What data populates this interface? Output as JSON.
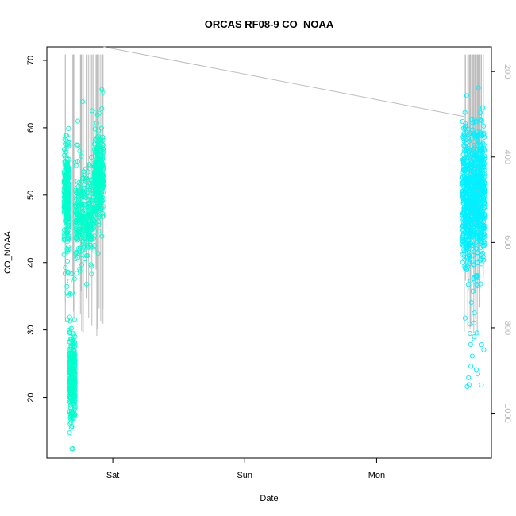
{
  "chart_data": {
    "type": "scatter",
    "title": "ORCAS RF08-9 CO_NOAA",
    "xlabel": "Date",
    "ylabel": "CO_NOAA",
    "x_ticks": [
      {
        "label": "Sat",
        "day": 1.0
      },
      {
        "label": "Sun",
        "day": 2.0
      },
      {
        "label": "Mon",
        "day": 3.0
      }
    ],
    "xlim_days": [
      0.5,
      3.87
    ],
    "ylim": [
      11,
      72
    ],
    "y_ticks": [
      20,
      30,
      40,
      50,
      60,
      70
    ],
    "y2_ticks": [
      200,
      400,
      600,
      800,
      1000
    ],
    "y2lim": [
      1105,
      142
    ],
    "grid": false,
    "series": [
      {
        "marker": "open-circle",
        "color_low": "#00ffcc",
        "color_high": "#00f0ff",
        "segments": [
          {
            "start_day": 0.63,
            "end_day": 0.67,
            "min": 31,
            "max": 63,
            "center": 50
          },
          {
            "start_day": 0.67,
            "end_day": 0.715,
            "min": 12,
            "max": 40,
            "center": 23
          },
          {
            "start_day": 0.715,
            "end_day": 0.86,
            "min": 36,
            "max": 66,
            "center": 47
          },
          {
            "start_day": 0.86,
            "end_day": 0.93,
            "min": 41,
            "max": 66,
            "center": 53
          },
          {
            "start_day": 3.65,
            "end_day": 3.82,
            "min": 21,
            "max": 66,
            "center": 50
          }
        ]
      }
    ],
    "pressure_trace": {
      "color": "#bdbdbd",
      "note_axis": "right",
      "segments": [
        {
          "start_day": 0.64,
          "end_day": 0.93,
          "min_pressure": 160,
          "max_pressure": 830
        },
        {
          "start_day": 3.66,
          "end_day": 3.81,
          "min_pressure": 160,
          "max_pressure": 815
        }
      ],
      "connector": [
        {
          "day": 0.93,
          "pressure": 142
        },
        {
          "day": 3.66,
          "pressure": 305
        }
      ]
    }
  }
}
